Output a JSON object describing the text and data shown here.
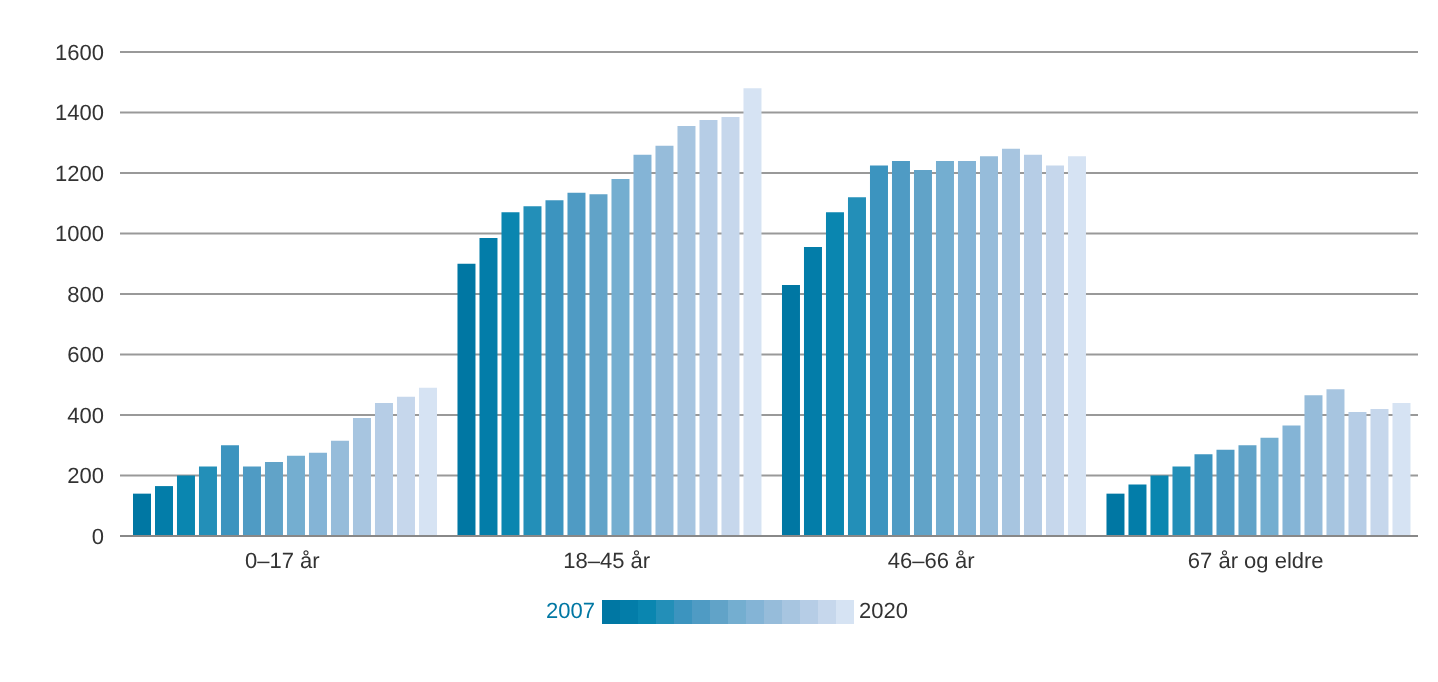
{
  "chart_data": {
    "type": "bar",
    "categories": [
      "0–17 år",
      "18–45 år",
      "46–66 år",
      "67 år og eldre"
    ],
    "series": [
      {
        "name": "2007",
        "color": "#0077a3",
        "values": [
          140,
          900,
          830,
          140
        ]
      },
      {
        "color": "#037da9",
        "values": [
          165,
          985,
          955,
          170
        ]
      },
      {
        "color": "#0a86b0",
        "values": [
          200,
          1070,
          1070,
          200
        ]
      },
      {
        "color": "#238fb8",
        "values": [
          230,
          1090,
          1120,
          230
        ]
      },
      {
        "color": "#3c94bf",
        "values": [
          300,
          1110,
          1225,
          270
        ]
      },
      {
        "color": "#4f9bc4",
        "values": [
          230,
          1135,
          1240,
          285
        ]
      },
      {
        "color": "#61a3c8",
        "values": [
          245,
          1130,
          1210,
          300
        ]
      },
      {
        "color": "#74aed0",
        "values": [
          265,
          1180,
          1240,
          325
        ]
      },
      {
        "color": "#84b4d6",
        "values": [
          275,
          1260,
          1240,
          365
        ]
      },
      {
        "color": "#96bcda",
        "values": [
          315,
          1290,
          1255,
          465
        ]
      },
      {
        "color": "#a7c5e0",
        "values": [
          390,
          1355,
          1280,
          485
        ]
      },
      {
        "color": "#b6cde6",
        "values": [
          440,
          1375,
          1260,
          410
        ]
      },
      {
        "color": "#c6d7ec",
        "values": [
          460,
          1385,
          1225,
          420
        ]
      },
      {
        "name": "2020",
        "color": "#d6e3f3",
        "values": [
          490,
          1480,
          1255,
          440
        ]
      }
    ],
    "ylim": [
      0,
      1600
    ],
    "yticks": [
      0,
      200,
      400,
      600,
      800,
      1000,
      1200,
      1400,
      1600
    ],
    "grid": "y",
    "legend": "bottom"
  }
}
